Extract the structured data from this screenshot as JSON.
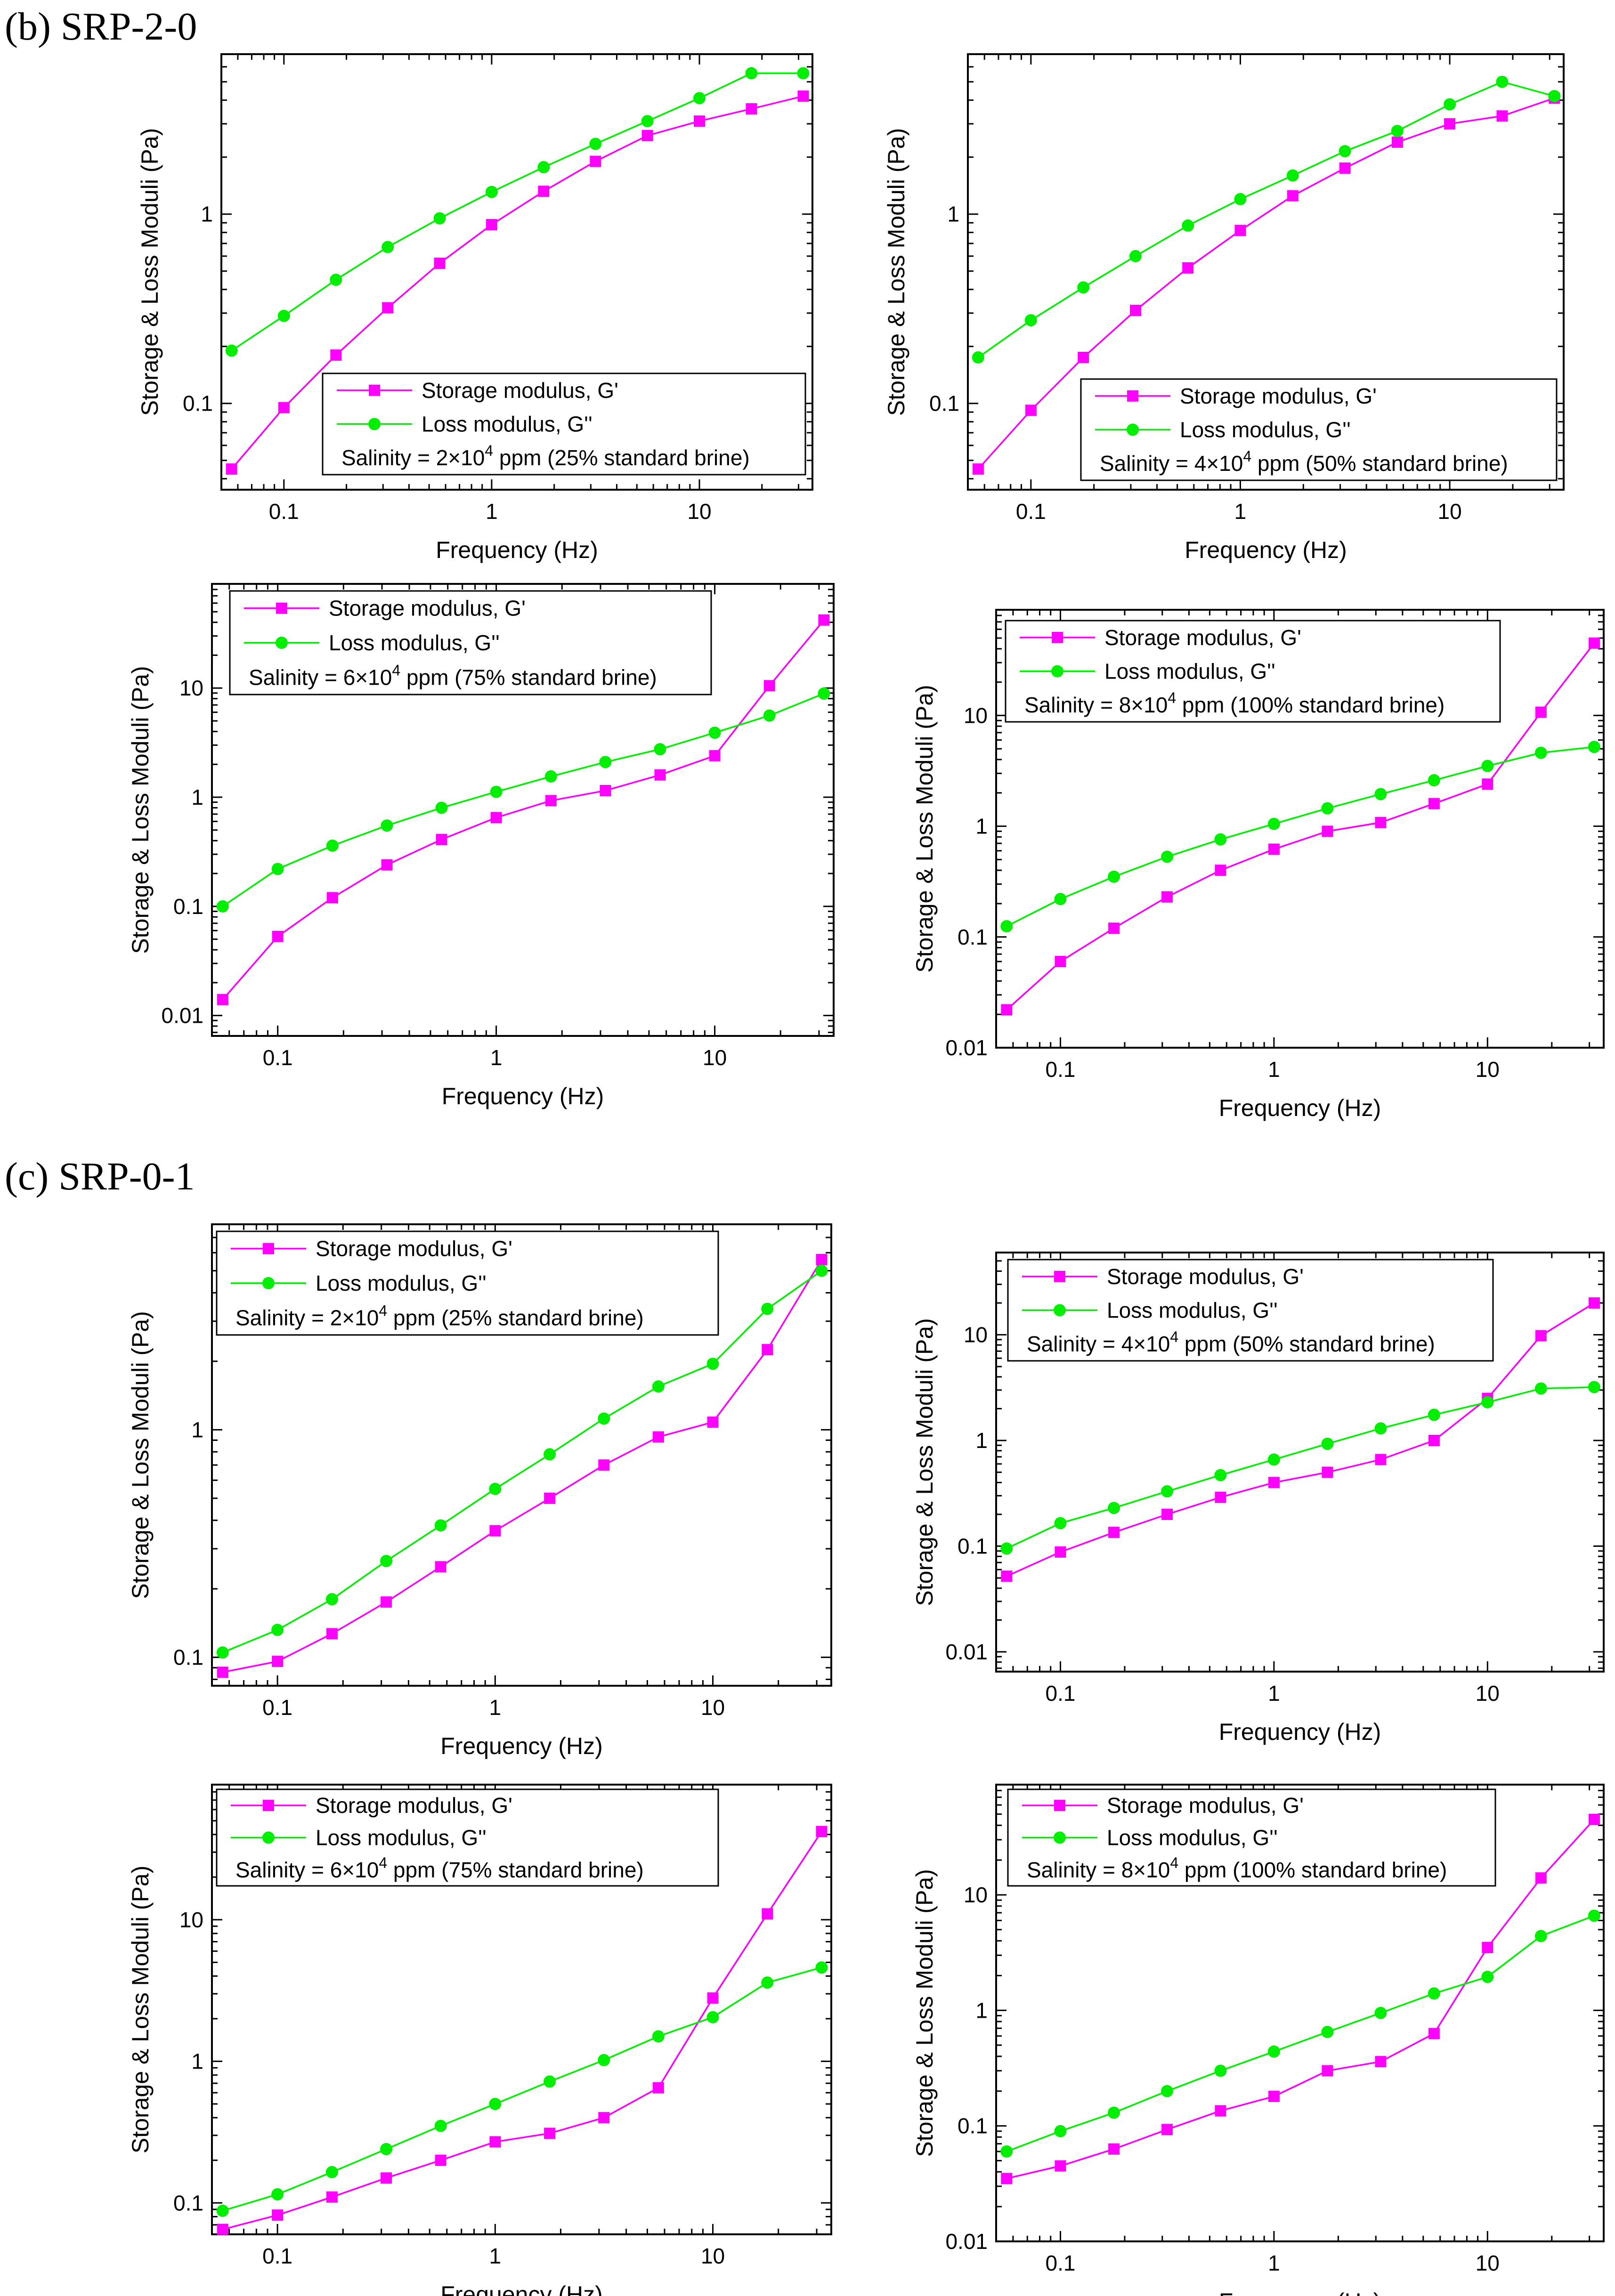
{
  "sections": [
    {
      "label": "(b) SRP-2-0"
    },
    {
      "label": "(c) SRP-0-1"
    }
  ],
  "colors": {
    "storage": "#ff00ff",
    "loss": "#00ee00",
    "axis": "#000000"
  },
  "chart_data": [
    {
      "id": "b1",
      "type": "line",
      "xscale": "log",
      "yscale": "log",
      "title": "",
      "xlabel": "Frequency (Hz)",
      "ylabel": "Storage & Loss Moduli (Pa)",
      "xlim": [
        0.05,
        35
      ],
      "ylim": [
        0.035,
        7
      ],
      "xticks": [
        0.1,
        1,
        10
      ],
      "xtick_labels": [
        "0.1",
        "1",
        "10"
      ],
      "yticks": [
        0.1,
        1
      ],
      "ytick_labels": [
        "0.1",
        "1"
      ],
      "x": [
        0.056,
        0.1,
        0.178,
        0.316,
        0.562,
        1,
        1.78,
        3.16,
        5.62,
        10,
        17.8,
        31.6
      ],
      "series": [
        {
          "name": "Storage modulus, G'",
          "marker": "square",
          "color": "#ff00ff",
          "values": [
            0.045,
            0.095,
            0.18,
            0.32,
            0.55,
            0.88,
            1.32,
            1.9,
            2.6,
            3.1,
            3.6,
            4.2
          ]
        },
        {
          "name": "Loss modulus, G''",
          "marker": "circle",
          "color": "#00ee00",
          "values": [
            0.19,
            0.29,
            0.45,
            0.67,
            0.95,
            1.31,
            1.77,
            2.35,
            3.1,
            4.1,
            5.55,
            5.55
          ]
        }
      ],
      "legend": {
        "position": "bottom-right",
        "entries": [
          "Storage modulus, G'",
          "Loss modulus, G''"
        ],
        "note_prefix": "Salinity = 2×10",
        "note_exp": "4",
        "note_suffix": " ppm (25% standard brine)"
      }
    },
    {
      "id": "b2",
      "type": "line",
      "xscale": "log",
      "yscale": "log",
      "title": "",
      "xlabel": "Frequency (Hz)",
      "ylabel": "Storage & Loss Moduli (Pa)",
      "xlim": [
        0.05,
        35
      ],
      "ylim": [
        0.035,
        7
      ],
      "xticks": [
        0.1,
        1,
        10
      ],
      "xtick_labels": [
        "0.1",
        "1",
        "10"
      ],
      "yticks": [
        0.1,
        1
      ],
      "ytick_labels": [
        "0.1",
        "1"
      ],
      "x": [
        0.056,
        0.1,
        0.178,
        0.316,
        0.562,
        1,
        1.78,
        3.16,
        5.62,
        10,
        17.8,
        31.6
      ],
      "series": [
        {
          "name": "Storage modulus, G'",
          "marker": "square",
          "color": "#ff00ff",
          "values": [
            0.045,
            0.092,
            0.175,
            0.31,
            0.52,
            0.82,
            1.25,
            1.75,
            2.4,
            3.0,
            3.3,
            4.1
          ]
        },
        {
          "name": "Loss modulus, G''",
          "marker": "circle",
          "color": "#00ee00",
          "values": [
            0.175,
            0.275,
            0.41,
            0.6,
            0.87,
            1.2,
            1.6,
            2.15,
            2.75,
            3.8,
            5.0,
            4.2
          ]
        }
      ],
      "legend": {
        "position": "bottom-right",
        "entries": [
          "Storage modulus, G'",
          "Loss modulus, G''"
        ],
        "note_prefix": "Salinity = 4×10",
        "note_exp": "4",
        "note_suffix": " ppm (50% standard brine)"
      }
    },
    {
      "id": "b3",
      "type": "line",
      "xscale": "log",
      "yscale": "log",
      "title": "",
      "xlabel": "Frequency (Hz)",
      "ylabel": "Storage & Loss Moduli (Pa)",
      "xlim": [
        0.05,
        35
      ],
      "ylim": [
        0.0065,
        90
      ],
      "xticks": [
        0.1,
        1,
        10
      ],
      "xtick_labels": [
        "0.1",
        "1",
        "10"
      ],
      "yticks": [
        0.01,
        0.1,
        1,
        10
      ],
      "ytick_labels": [
        "0.01",
        "0.1",
        "1",
        "10"
      ],
      "x": [
        0.056,
        0.1,
        0.178,
        0.316,
        0.562,
        1,
        1.78,
        3.16,
        5.62,
        10,
        17.8,
        31.6
      ],
      "series": [
        {
          "name": "Storage modulus, G'",
          "marker": "square",
          "color": "#ff00ff",
          "values": [
            0.014,
            0.053,
            0.12,
            0.24,
            0.41,
            0.65,
            0.93,
            1.15,
            1.6,
            2.4,
            10.5,
            42
          ]
        },
        {
          "name": "Loss modulus, G''",
          "marker": "circle",
          "color": "#00ee00",
          "values": [
            0.1,
            0.22,
            0.36,
            0.55,
            0.8,
            1.12,
            1.55,
            2.1,
            2.75,
            3.9,
            5.6,
            8.9
          ]
        }
      ],
      "legend": {
        "position": "top-left",
        "entries": [
          "Storage modulus, G'",
          "Loss modulus, G''"
        ],
        "note_prefix": "Salinity = 6×10",
        "note_exp": "4",
        "note_suffix": " ppm (75% standard brine)"
      }
    },
    {
      "id": "b4",
      "type": "line",
      "xscale": "log",
      "yscale": "log",
      "title": "",
      "xlabel": "Frequency (Hz)",
      "ylabel": "Storage & Loss Moduli (Pa)",
      "xlim": [
        0.05,
        35
      ],
      "ylim": [
        0.01,
        90
      ],
      "xticks": [
        0.1,
        1,
        10
      ],
      "xtick_labels": [
        "0.1",
        "1",
        "10"
      ],
      "yticks": [
        0.01,
        0.1,
        1,
        10
      ],
      "ytick_labels": [
        "0.01",
        "0.1",
        "1",
        "10"
      ],
      "x": [
        0.056,
        0.1,
        0.178,
        0.316,
        0.562,
        1,
        1.78,
        3.16,
        5.62,
        10,
        17.8,
        31.6
      ],
      "series": [
        {
          "name": "Storage modulus, G'",
          "marker": "square",
          "color": "#ff00ff",
          "values": [
            0.022,
            0.06,
            0.12,
            0.23,
            0.4,
            0.62,
            0.9,
            1.08,
            1.6,
            2.4,
            10.7,
            45
          ]
        },
        {
          "name": "Loss modulus, G''",
          "marker": "circle",
          "color": "#00ee00",
          "values": [
            0.125,
            0.22,
            0.35,
            0.53,
            0.76,
            1.05,
            1.45,
            1.95,
            2.6,
            3.5,
            4.6,
            5.2
          ]
        }
      ],
      "legend": {
        "position": "top-left",
        "entries": [
          "Storage modulus, G'",
          "Loss modulus, G''"
        ],
        "note_prefix": "Salinity = 8×10",
        "note_exp": "4",
        "note_suffix": " ppm (100% standard brine)"
      }
    },
    {
      "id": "c1",
      "type": "line",
      "xscale": "log",
      "yscale": "log",
      "title": "",
      "xlabel": "Frequency (Hz)",
      "ylabel": "Storage & Loss Moduli (Pa)",
      "xlim": [
        0.05,
        35
      ],
      "ylim": [
        0.075,
        8
      ],
      "xticks": [
        0.1,
        1,
        10
      ],
      "xtick_labels": [
        "0.1",
        "1",
        "10"
      ],
      "yticks": [
        0.1,
        1
      ],
      "ytick_labels": [
        "0.1",
        "1"
      ],
      "x": [
        0.056,
        0.1,
        0.178,
        0.316,
        0.562,
        1,
        1.78,
        3.16,
        5.62,
        10,
        17.8,
        31.6
      ],
      "series": [
        {
          "name": "Storage modulus, G'",
          "marker": "square",
          "color": "#ff00ff",
          "values": [
            0.086,
            0.096,
            0.127,
            0.175,
            0.25,
            0.36,
            0.5,
            0.7,
            0.93,
            1.08,
            2.25,
            5.6
          ]
        },
        {
          "name": "Loss modulus, G''",
          "marker": "circle",
          "color": "#00ee00",
          "values": [
            0.105,
            0.132,
            0.18,
            0.265,
            0.38,
            0.55,
            0.78,
            1.12,
            1.55,
            1.95,
            3.4,
            5.0
          ]
        }
      ],
      "legend": {
        "position": "top-left",
        "entries": [
          "Storage modulus, G'",
          "Loss modulus, G''"
        ],
        "note_prefix": "Salinity = 2×10",
        "note_exp": "4",
        "note_suffix": " ppm (25% standard brine)"
      }
    },
    {
      "id": "c2",
      "type": "line",
      "xscale": "log",
      "yscale": "log",
      "title": "",
      "xlabel": "Frequency (Hz)",
      "ylabel": "Storage & Loss Moduli (Pa)",
      "xlim": [
        0.05,
        35
      ],
      "ylim": [
        0.0065,
        60
      ],
      "xticks": [
        0.1,
        1,
        10
      ],
      "xtick_labels": [
        "0.1",
        "1",
        "10"
      ],
      "yticks": [
        0.01,
        0.1,
        1,
        10
      ],
      "ytick_labels": [
        "0.01",
        "0.1",
        "1",
        "10"
      ],
      "x": [
        0.056,
        0.1,
        0.178,
        0.316,
        0.562,
        1,
        1.78,
        3.16,
        5.62,
        10,
        17.8,
        31.6
      ],
      "series": [
        {
          "name": "Storage modulus, G'",
          "marker": "square",
          "color": "#ff00ff",
          "values": [
            0.052,
            0.088,
            0.135,
            0.2,
            0.29,
            0.4,
            0.5,
            0.66,
            1.0,
            2.5,
            9.8,
            20
          ]
        },
        {
          "name": "Loss modulus, G''",
          "marker": "circle",
          "color": "#00ee00",
          "values": [
            0.095,
            0.165,
            0.23,
            0.33,
            0.47,
            0.66,
            0.93,
            1.3,
            1.75,
            2.3,
            3.1,
            3.2
          ]
        }
      ],
      "legend": {
        "position": "top-left",
        "entries": [
          "Storage modulus, G'",
          "Loss modulus, G''"
        ],
        "note_prefix": "Salinity = 4×10",
        "note_exp": "4",
        "note_suffix": " ppm (50% standard brine)"
      }
    },
    {
      "id": "c3",
      "type": "line",
      "xscale": "log",
      "yscale": "log",
      "title": "",
      "xlabel": "Frequency (Hz)",
      "ylabel": "Storage & Loss Moduli (Pa)",
      "xlim": [
        0.05,
        35
      ],
      "ylim": [
        0.06,
        90
      ],
      "xticks": [
        0.1,
        1,
        10
      ],
      "xtick_labels": [
        "0.1",
        "1",
        "10"
      ],
      "yticks": [
        0.1,
        1,
        10
      ],
      "ytick_labels": [
        "0.1",
        "1",
        "10"
      ],
      "x": [
        0.056,
        0.1,
        0.178,
        0.316,
        0.562,
        1,
        1.78,
        3.16,
        5.62,
        10,
        17.8,
        31.6
      ],
      "series": [
        {
          "name": "Storage modulus, G'",
          "marker": "square",
          "color": "#ff00ff",
          "values": [
            0.065,
            0.082,
            0.11,
            0.15,
            0.2,
            0.27,
            0.31,
            0.4,
            0.65,
            2.8,
            11,
            42
          ]
        },
        {
          "name": "Loss modulus, G''",
          "marker": "circle",
          "color": "#00ee00",
          "values": [
            0.088,
            0.115,
            0.165,
            0.24,
            0.35,
            0.5,
            0.72,
            1.02,
            1.5,
            2.05,
            3.6,
            4.6
          ]
        }
      ],
      "legend": {
        "position": "top-left",
        "entries": [
          "Storage modulus, G'",
          "Loss modulus, G''"
        ],
        "note_prefix": "Salinity = 6×10",
        "note_exp": "4",
        "note_suffix": " ppm (75% standard brine)"
      }
    },
    {
      "id": "c4",
      "type": "line",
      "xscale": "log",
      "yscale": "log",
      "title": "",
      "xlabel": "Frequency (Hz)",
      "ylabel": "Storage & Loss Moduli (Pa)",
      "xlim": [
        0.05,
        35
      ],
      "ylim": [
        0.01,
        90
      ],
      "xticks": [
        0.1,
        1,
        10
      ],
      "xtick_labels": [
        "0.1",
        "1",
        "10"
      ],
      "yticks": [
        0.01,
        0.1,
        1,
        10
      ],
      "ytick_labels": [
        "0.01",
        "0.1",
        "1",
        "10"
      ],
      "x": [
        0.056,
        0.1,
        0.178,
        0.316,
        0.562,
        1,
        1.78,
        3.16,
        5.62,
        10,
        17.8,
        31.6
      ],
      "series": [
        {
          "name": "Storage modulus, G'",
          "marker": "square",
          "color": "#ff00ff",
          "values": [
            0.035,
            0.045,
            0.063,
            0.093,
            0.135,
            0.18,
            0.3,
            0.36,
            0.63,
            3.5,
            14,
            45
          ]
        },
        {
          "name": "Loss modulus, G''",
          "marker": "circle",
          "color": "#00ee00",
          "values": [
            0.06,
            0.09,
            0.13,
            0.2,
            0.3,
            0.44,
            0.65,
            0.95,
            1.4,
            1.95,
            4.4,
            6.6
          ]
        }
      ],
      "legend": {
        "position": "top-left",
        "entries": [
          "Storage modulus, G'",
          "Loss modulus, G''"
        ],
        "note_prefix": "Salinity = 8×10",
        "note_exp": "4",
        "note_suffix": " ppm (100% standard brine)"
      }
    }
  ]
}
